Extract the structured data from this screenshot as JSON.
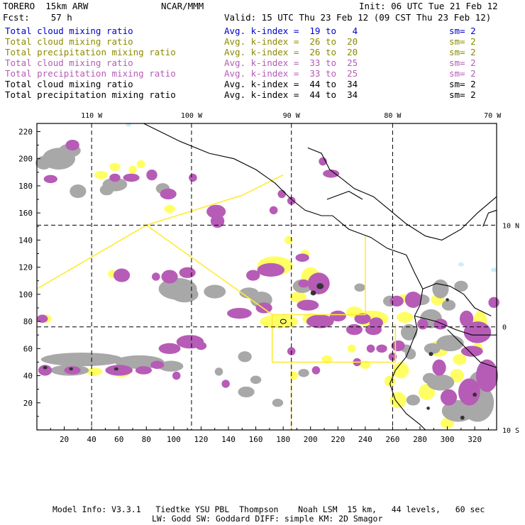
{
  "header": {
    "model": "TORERO  15km ARW",
    "org": "NCAR/MMM",
    "init": "Init: 06 UTC Tue 21 Feb 12",
    "fcst": "Fcst:    57 h",
    "valid": "Valid: 15 UTC Thu 23 Feb 12 (09 CST Thu 23 Feb 12)"
  },
  "legend": [
    {
      "field": "Total cloud mixing ratio",
      "kidx": "Avg. k-index =  19 to   4",
      "sm": "sm= 2",
      "color": "#0000cc"
    },
    {
      "field": "Total cloud mixing ratio",
      "kidx": "Avg. k-index =  26 to  20",
      "sm": "sm= 2",
      "color": "#8b8b00"
    },
    {
      "field": "Total precipitation mixing ratio",
      "kidx": "Avg. k-index =  26 to  20",
      "sm": "sm= 2",
      "color": "#8b8b00"
    },
    {
      "field": "Total cloud mixing ratio",
      "kidx": "Avg. k-index =  33 to  25",
      "sm": "sm= 2",
      "color": "#b65cb6"
    },
    {
      "field": "Total precipitation mixing ratio",
      "kidx": "Avg. k-index =  33 to  25",
      "sm": "sm= 2",
      "color": "#b65cb6"
    },
    {
      "field": "Total cloud mixing ratio",
      "kidx": "Avg. k-index =  44 to  34",
      "sm": "sm= 2",
      "color": "#000000"
    },
    {
      "field": "Total precipitation mixing ratio",
      "kidx": "Avg. k-index =  44 to  34",
      "sm": "sm= 2",
      "color": "#000000"
    }
  ],
  "footer": {
    "line1": "Model Info: V3.3.1   Tiedtke YSU PBL  Thompson    Noah LSM  15 km,   44 levels,   60 sec",
    "line2": "LW: Godd SW: Goddard DIFF: simple KM: 2D Smagor"
  },
  "chart_data": {
    "type": "heatmap",
    "title": "",
    "xlabel": "",
    "ylabel": "",
    "xlim": [
      0,
      336
    ],
    "ylim": [
      0,
      226
    ],
    "x_ticks": [
      "20",
      "40",
      "60",
      "80",
      "100",
      "120",
      "140",
      "160",
      "180",
      "200",
      "220",
      "240",
      "260",
      "280",
      "300",
      "320"
    ],
    "x_tick_values": [
      20,
      40,
      60,
      80,
      100,
      120,
      140,
      160,
      180,
      200,
      220,
      240,
      260,
      280,
      300,
      320
    ],
    "y_ticks": [
      "20",
      "40",
      "60",
      "80",
      "100",
      "120",
      "140",
      "160",
      "180",
      "200",
      "220"
    ],
    "y_tick_values": [
      20,
      40,
      60,
      80,
      100,
      120,
      140,
      160,
      180,
      200,
      220
    ],
    "lon_labels": [
      {
        "label": "110 W",
        "x": 40
      },
      {
        "label": "100 W",
        "x": 113
      },
      {
        "label": "90 W",
        "x": 186
      },
      {
        "label": "80 W",
        "x": 260
      },
      {
        "label": "70 W",
        "x": 333
      }
    ],
    "lat_labels": [
      {
        "label": "10 N",
        "y": 151
      },
      {
        "label": "0",
        "y": 76
      },
      {
        "label": "10 S",
        "y": 0
      }
    ],
    "lon_grid": [
      40,
      113,
      186,
      260
    ],
    "lat_grid": [
      151,
      76
    ],
    "colors": {
      "gray": "#a8a8a8",
      "purple": "#b65cb6",
      "yellow": "#ffff64",
      "dark": "#333333",
      "coast": "#000000",
      "box": "#ffeb33",
      "cyan": "#cdeef5"
    },
    "grid": true,
    "grid_style": "dashed",
    "coastlines": true
  }
}
